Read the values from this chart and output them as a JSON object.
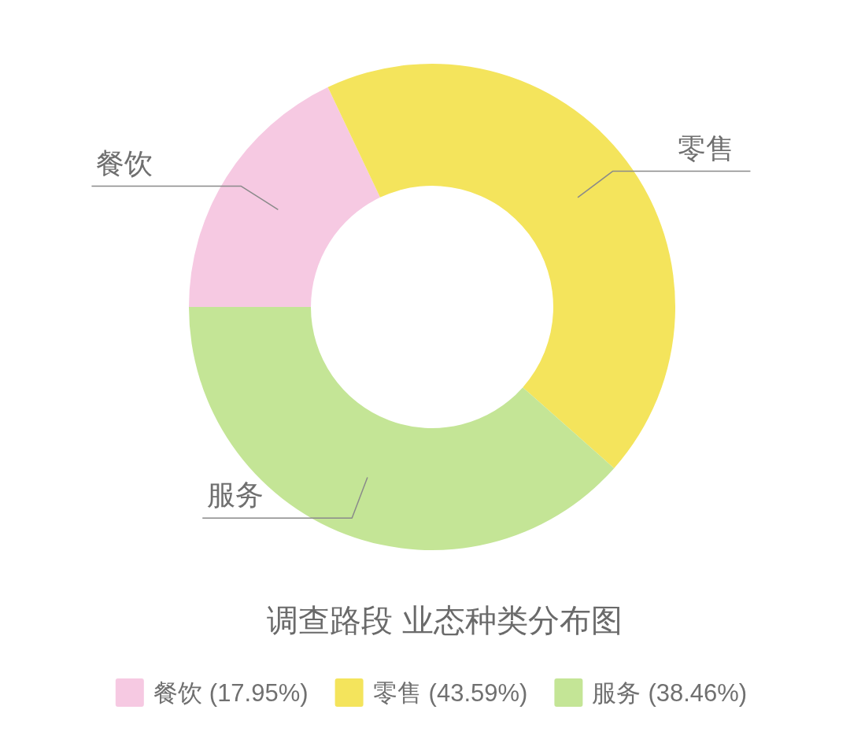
{
  "chart_data": {
    "type": "donut",
    "title": "调查路段 业态种类分布图",
    "categories": [
      "餐饮",
      "零售",
      "服务"
    ],
    "values": [
      17.95,
      43.59,
      38.46
    ],
    "colors": [
      "#f6c9e2",
      "#f4e45c",
      "#c4e596"
    ],
    "value_labels": [
      "(17.95%)",
      "(43.59%)",
      "(38.46%)"
    ],
    "legend": "bottom"
  }
}
